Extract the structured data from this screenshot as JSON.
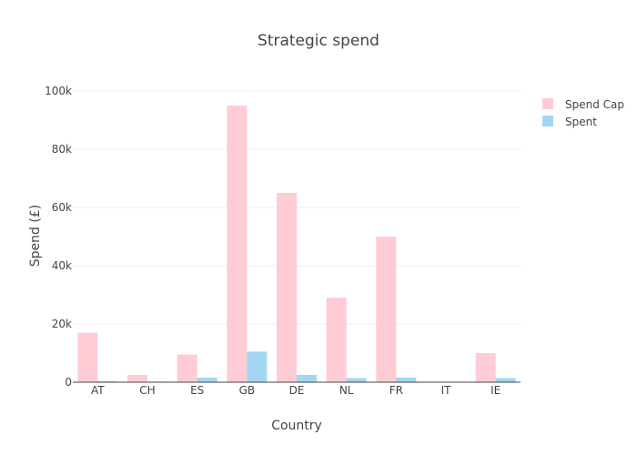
{
  "chart_data": {
    "type": "bar",
    "title": "Strategic spend",
    "xlabel": "Country",
    "ylabel": "Spend (£)",
    "categories": [
      "AT",
      "CH",
      "ES",
      "GB",
      "DE",
      "NL",
      "FR",
      "IT",
      "IE"
    ],
    "series": [
      {
        "name": "Spend Cap",
        "color": "#ffccd5",
        "values": [
          17000,
          2500,
          9500,
          95000,
          65000,
          29000,
          50000,
          0,
          10000
        ]
      },
      {
        "name": "Spent",
        "color": "#a3d6f2",
        "values": [
          300,
          200,
          1600,
          10500,
          2500,
          1400,
          1600,
          150,
          1400
        ]
      }
    ],
    "ylim": [
      0,
      100000
    ],
    "yticks": [
      0,
      20000,
      40000,
      60000,
      80000,
      100000
    ],
    "ytick_labels": [
      "0",
      "20k",
      "40k",
      "60k",
      "80k",
      "100k"
    ],
    "grid": true,
    "legend_position": "top-right"
  }
}
